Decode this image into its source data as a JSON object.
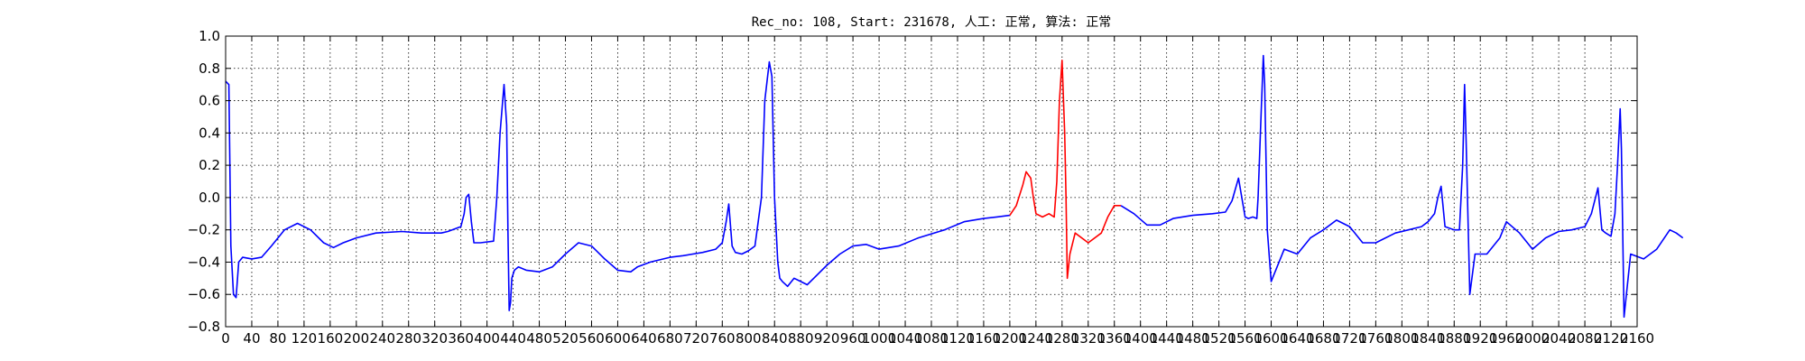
{
  "chart_data": {
    "type": "line",
    "title": "Rec_no: 108, Start: 231678, 人工: 正常, 算法: 正常",
    "xlabel": "",
    "ylabel": "",
    "xlim": [
      0,
      2160
    ],
    "ylim": [
      -0.8,
      1.0
    ],
    "grid": true,
    "y_ticks": [
      -0.8,
      -0.6,
      -0.4,
      -0.2,
      0.0,
      0.2,
      0.4,
      0.6,
      0.8,
      1.0
    ],
    "y_tick_labels": [
      "−0.8",
      "−0.6",
      "−0.4",
      "−0.2",
      "0.0",
      "0.2",
      "0.4",
      "0.6",
      "0.8",
      "1.0"
    ],
    "x_ticks": [
      0,
      40,
      80,
      120,
      160,
      200,
      240,
      280,
      320,
      360,
      400,
      440,
      480,
      520,
      560,
      600,
      640,
      680,
      720,
      760,
      800,
      840,
      880,
      920,
      960,
      1000,
      1040,
      1080,
      1120,
      1160,
      1200,
      1240,
      1280,
      1320,
      1360,
      1400,
      1440,
      1480,
      1520,
      1560,
      1600,
      1640,
      1680,
      1720,
      1760,
      1800,
      1840,
      1880,
      1920,
      1960,
      2000,
      2040,
      2080,
      2120,
      2160
    ],
    "x_tick_labels": [
      "0",
      "40",
      "80",
      "120",
      "160",
      "200",
      "240",
      "280",
      "320",
      "360",
      "400",
      "440",
      "480",
      "520",
      "560",
      "600",
      "640",
      "680",
      "720",
      "760",
      "800",
      "840",
      "880",
      "920",
      "960",
      "1000",
      "1040",
      "1080",
      "1120",
      "1160",
      "1200",
      "1240",
      "1280",
      "1320",
      "1360",
      "1400",
      "1440",
      "1480",
      "1520",
      "1560",
      "1600",
      "1640",
      "1680",
      "1720",
      "1760",
      "1800",
      "1840",
      "1880",
      "1920",
      "1960",
      "2000",
      "2040",
      "2080",
      "2120",
      "2160"
    ],
    "series": [
      {
        "color": "#0000ff",
        "x": [
          0,
          5,
          8,
          12,
          16,
          20,
          26,
          40,
          55,
          70,
          90,
          110,
          130,
          150,
          165,
          180,
          200,
          230,
          270,
          300,
          330,
          340,
          360,
          365,
          368,
          372,
          376,
          380,
          390,
          410,
          415,
          420,
          424,
          426,
          430,
          432,
          434,
          436,
          438,
          442,
          448,
          460,
          480,
          500,
          520,
          540,
          560,
          580,
          600,
          620,
          630,
          650,
          680,
          700,
          730,
          750,
          760,
          766,
          770,
          775,
          780,
          790,
          800,
          810,
          820,
          825,
          832,
          836,
          840,
          845,
          848,
          852,
          860,
          870,
          880,
          890,
          900,
          920,
          940,
          960,
          980,
          1000,
          1030,
          1060,
          1100,
          1130,
          1160,
          1180,
          1200
        ],
        "y": [
          0.72,
          0.7,
          -0.3,
          -0.6,
          -0.62,
          -0.4,
          -0.37,
          -0.38,
          -0.37,
          -0.3,
          -0.2,
          -0.16,
          -0.2,
          -0.28,
          -0.31,
          -0.28,
          -0.25,
          -0.22,
          -0.21,
          -0.22,
          -0.22,
          -0.21,
          -0.18,
          -0.1,
          0.0,
          0.02,
          -0.15,
          -0.28,
          -0.28,
          -0.27,
          0.0,
          0.4,
          0.6,
          0.7,
          0.45,
          -0.2,
          -0.7,
          -0.65,
          -0.5,
          -0.45,
          -0.43,
          -0.45,
          -0.46,
          -0.43,
          -0.35,
          -0.28,
          -0.3,
          -0.38,
          -0.45,
          -0.46,
          -0.43,
          -0.4,
          -0.37,
          -0.36,
          -0.34,
          -0.32,
          -0.28,
          -0.15,
          -0.04,
          -0.3,
          -0.34,
          -0.35,
          -0.33,
          -0.3,
          0.0,
          0.6,
          0.84,
          0.75,
          0.0,
          -0.4,
          -0.5,
          -0.52,
          -0.55,
          -0.5,
          -0.52,
          -0.54,
          -0.5,
          -0.42,
          -0.35,
          -0.3,
          -0.29,
          -0.32,
          -0.3,
          -0.25,
          -0.2,
          -0.15,
          -0.13,
          -0.12,
          -0.11
        ]
      },
      {
        "color": "#ff0000",
        "x": [
          1200,
          1210,
          1220,
          1225,
          1232,
          1236,
          1240,
          1250,
          1260,
          1268,
          1272,
          1276,
          1280,
          1284,
          1286,
          1288,
          1292,
          1300,
          1320,
          1340,
          1350,
          1360,
          1370
        ],
        "y": [
          -0.11,
          -0.05,
          0.08,
          0.16,
          0.12,
          0.0,
          -0.1,
          -0.12,
          -0.1,
          -0.12,
          0.1,
          0.6,
          0.85,
          0.4,
          0.0,
          -0.5,
          -0.35,
          -0.22,
          -0.28,
          -0.22,
          -0.12,
          -0.05,
          -0.05
        ]
      },
      {
        "color": "#0000ff",
        "x": [
          1370,
          1390,
          1410,
          1430,
          1450,
          1480,
          1510,
          1530,
          1540,
          1550,
          1560,
          1565,
          1572,
          1578,
          1580,
          1584,
          1588,
          1590,
          1594,
          1600,
          1620,
          1640,
          1660,
          1680,
          1700,
          1720,
          1740,
          1760,
          1790,
          1810,
          1830,
          1840,
          1850,
          1855,
          1860,
          1866,
          1880,
          1888,
          1893,
          1896,
          1898,
          1904,
          1912,
          1930,
          1950,
          1960,
          1980,
          2000,
          2020,
          2040,
          2060,
          2080,
          2090,
          2100,
          2106,
          2112,
          2120,
          2126,
          2130,
          2134,
          2136,
          2140,
          2150,
          2170,
          2190,
          2210,
          2220,
          2230
        ],
        "y": [
          -0.05,
          -0.1,
          -0.17,
          -0.17,
          -0.13,
          -0.11,
          -0.1,
          -0.09,
          -0.02,
          0.12,
          -0.12,
          -0.13,
          -0.12,
          -0.13,
          0.0,
          0.45,
          0.88,
          0.7,
          -0.2,
          -0.52,
          -0.32,
          -0.35,
          -0.25,
          -0.2,
          -0.14,
          -0.18,
          -0.28,
          -0.28,
          -0.22,
          -0.2,
          -0.18,
          -0.15,
          -0.1,
          0.0,
          0.07,
          -0.18,
          -0.2,
          -0.2,
          0.2,
          0.7,
          0.4,
          -0.6,
          -0.35,
          -0.35,
          -0.25,
          -0.15,
          -0.22,
          -0.32,
          -0.25,
          -0.21,
          -0.2,
          -0.18,
          -0.1,
          0.06,
          -0.2,
          -0.22,
          -0.24,
          -0.1,
          0.2,
          0.55,
          0.3,
          -0.74,
          -0.35,
          -0.38,
          -0.32,
          -0.2,
          -0.22,
          -0.25
        ]
      }
    ]
  }
}
